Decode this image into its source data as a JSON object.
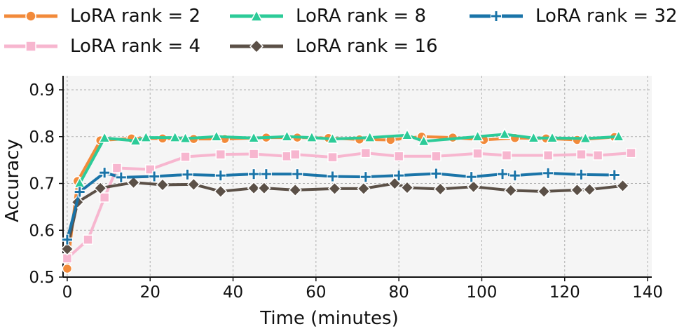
{
  "chart_data": {
    "type": "line",
    "title": "",
    "xlabel": "Time (minutes)",
    "ylabel": "Accuracy",
    "xlim": [
      -1,
      141
    ],
    "ylim": [
      0.5,
      0.93
    ],
    "xticks": [
      0,
      20,
      40,
      60,
      80,
      100,
      120,
      140
    ],
    "yticks": [
      0.5,
      0.6,
      0.7,
      0.8,
      0.9
    ],
    "xtick_labels": [
      "0",
      "20",
      "40",
      "60",
      "80",
      "100",
      "120",
      "140"
    ],
    "ytick_labels": [
      "0.5",
      "0.6",
      "0.7",
      "0.8",
      "0.9"
    ],
    "grid": true,
    "legend_position": "top",
    "series": [
      {
        "name": "LoRA rank = 2",
        "color": "#F28A3A",
        "marker": "circle",
        "points": [
          [
            0,
            0.518
          ],
          [
            2.5,
            0.705
          ],
          [
            8,
            0.792
          ],
          [
            15.5,
            0.796
          ],
          [
            23,
            0.796
          ],
          [
            30.5,
            0.795
          ],
          [
            38,
            0.795
          ],
          [
            48,
            0.798
          ],
          [
            55.5,
            0.798
          ],
          [
            63,
            0.797
          ],
          [
            70.5,
            0.794
          ],
          [
            78,
            0.793
          ],
          [
            85.5,
            0.8
          ],
          [
            93,
            0.798
          ],
          [
            100.5,
            0.793
          ],
          [
            108,
            0.797
          ],
          [
            115.5,
            0.796
          ],
          [
            123,
            0.793
          ],
          [
            132,
            0.799
          ]
        ]
      },
      {
        "name": "LoRA rank = 4",
        "color": "#F7B6CF",
        "marker": "square",
        "points": [
          [
            0,
            0.54
          ],
          [
            5,
            0.58
          ],
          [
            9,
            0.67
          ],
          [
            12,
            0.733
          ],
          [
            20,
            0.73
          ],
          [
            28.5,
            0.757
          ],
          [
            37,
            0.762
          ],
          [
            45,
            0.763
          ],
          [
            53,
            0.758
          ],
          [
            55,
            0.762
          ],
          [
            64,
            0.756
          ],
          [
            72,
            0.765
          ],
          [
            80,
            0.758
          ],
          [
            89,
            0.758
          ],
          [
            99,
            0.764
          ],
          [
            106,
            0.76
          ],
          [
            116,
            0.76
          ],
          [
            124,
            0.762
          ],
          [
            128,
            0.76
          ],
          [
            136,
            0.765
          ]
        ]
      },
      {
        "name": "LoRA rank = 8",
        "color": "#2CCB98",
        "marker": "triangle",
        "points": [
          [
            3,
            0.7
          ],
          [
            9,
            0.797
          ],
          [
            16.5,
            0.791
          ],
          [
            19,
            0.798
          ],
          [
            26,
            0.798
          ],
          [
            28.5,
            0.796
          ],
          [
            36,
            0.8
          ],
          [
            45,
            0.797
          ],
          [
            53,
            0.8
          ],
          [
            59,
            0.798
          ],
          [
            64,
            0.795
          ],
          [
            73,
            0.798
          ],
          [
            82,
            0.803
          ],
          [
            86,
            0.79
          ],
          [
            99,
            0.8
          ],
          [
            105.5,
            0.805
          ],
          [
            112.5,
            0.797
          ],
          [
            117,
            0.797
          ],
          [
            125,
            0.796
          ],
          [
            133,
            0.8
          ]
        ]
      },
      {
        "name": "LoRA rank = 16",
        "color": "#5B5047",
        "marker": "diamond",
        "points": [
          [
            0,
            0.56
          ],
          [
            2.5,
            0.66
          ],
          [
            8,
            0.69
          ],
          [
            16,
            0.702
          ],
          [
            23,
            0.697
          ],
          [
            30.5,
            0.698
          ],
          [
            37,
            0.683
          ],
          [
            45,
            0.69
          ],
          [
            47.5,
            0.69
          ],
          [
            55,
            0.686
          ],
          [
            64.5,
            0.689
          ],
          [
            71.5,
            0.689
          ],
          [
            79,
            0.7
          ],
          [
            82,
            0.691
          ],
          [
            90,
            0.688
          ],
          [
            98,
            0.693
          ],
          [
            107,
            0.685
          ],
          [
            115,
            0.683
          ],
          [
            123,
            0.686
          ],
          [
            126,
            0.687
          ],
          [
            134,
            0.695
          ]
        ]
      },
      {
        "name": "LoRA rank = 32",
        "color": "#1A74A8",
        "marker": "plus",
        "points": [
          [
            0,
            0.58
          ],
          [
            3,
            0.682
          ],
          [
            9,
            0.723
          ],
          [
            13,
            0.713
          ],
          [
            21,
            0.715
          ],
          [
            29,
            0.719
          ],
          [
            37,
            0.717
          ],
          [
            45,
            0.72
          ],
          [
            48,
            0.72
          ],
          [
            55.5,
            0.72
          ],
          [
            64,
            0.715
          ],
          [
            72,
            0.714
          ],
          [
            80,
            0.717
          ],
          [
            89,
            0.721
          ],
          [
            97.5,
            0.714
          ],
          [
            105,
            0.72
          ],
          [
            108,
            0.717
          ],
          [
            116,
            0.722
          ],
          [
            124,
            0.719
          ],
          [
            132,
            0.718
          ]
        ]
      }
    ]
  }
}
